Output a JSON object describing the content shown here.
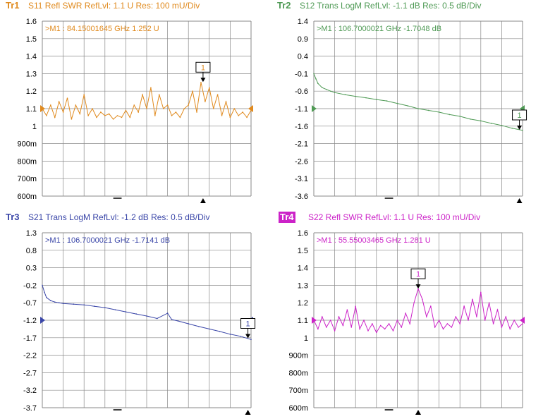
{
  "chart_data": [
    {
      "type": "line",
      "trace_tag": "Tr1",
      "trace_tag_style": "plain",
      "title": "S11 Refl SWR RefLvl: 1.1  U Res: 100 mU/Div",
      "color": "#e08a1e",
      "ylim": [
        0.6,
        1.6
      ],
      "y_ticks": [
        "1.6",
        "1.5",
        "1.4",
        "1.3",
        "1.2",
        "1.1",
        "1",
        "900m",
        "800m",
        "700m",
        "600m"
      ],
      "ref_level": 1.1,
      "grid": true,
      "marker_readout": ">M1  :   84.15001645 GHz  1.252  U",
      "marker": {
        "label": "1",
        "x_frac": 0.77,
        "y": 1.252
      },
      "x": [
        0,
        0.02,
        0.04,
        0.06,
        0.08,
        0.1,
        0.12,
        0.14,
        0.16,
        0.18,
        0.2,
        0.22,
        0.24,
        0.26,
        0.28,
        0.3,
        0.32,
        0.34,
        0.36,
        0.38,
        0.4,
        0.42,
        0.44,
        0.46,
        0.48,
        0.5,
        0.52,
        0.54,
        0.56,
        0.58,
        0.6,
        0.62,
        0.64,
        0.66,
        0.68,
        0.7,
        0.72,
        0.74,
        0.76,
        0.78,
        0.8,
        0.82,
        0.84,
        0.86,
        0.88,
        0.9,
        0.92,
        0.94,
        0.96,
        0.98,
        1.0
      ],
      "values": [
        1.1,
        1.06,
        1.12,
        1.05,
        1.14,
        1.08,
        1.16,
        1.04,
        1.12,
        1.07,
        1.18,
        1.06,
        1.1,
        1.05,
        1.08,
        1.06,
        1.07,
        1.04,
        1.06,
        1.05,
        1.09,
        1.05,
        1.12,
        1.08,
        1.18,
        1.1,
        1.22,
        1.06,
        1.18,
        1.1,
        1.12,
        1.06,
        1.08,
        1.05,
        1.1,
        1.12,
        1.2,
        1.08,
        1.25,
        1.14,
        1.22,
        1.1,
        1.18,
        1.06,
        1.14,
        1.05,
        1.1,
        1.06,
        1.08,
        1.05,
        1.09
      ]
    },
    {
      "type": "line",
      "trace_tag": "Tr2",
      "trace_tag_style": "plain",
      "title": "S12 Trans LogM RefLvl: -1.1  dB Res: 0.5  dB/Div",
      "color": "#4f9a55",
      "ylim": [
        -3.6,
        1.4
      ],
      "y_ticks": [
        "1.4",
        "0.9",
        "0.4",
        "-0.1",
        "-0.6",
        "-1.1",
        "-1.6",
        "-2.1",
        "-2.6",
        "-3.1",
        "-3.6"
      ],
      "ref_level": -1.1,
      "grid": true,
      "marker_readout": ">M1  :   106.7000021 GHz  -1.7048  dB",
      "marker": {
        "label": "1",
        "x_frac": 0.985,
        "y": -1.7048
      },
      "x": [
        0,
        0.01,
        0.02,
        0.04,
        0.06,
        0.08,
        0.1,
        0.15,
        0.2,
        0.25,
        0.3,
        0.35,
        0.4,
        0.45,
        0.5,
        0.55,
        0.6,
        0.65,
        0.7,
        0.75,
        0.8,
        0.85,
        0.9,
        0.95,
        1.0
      ],
      "values": [
        -0.1,
        -0.25,
        -0.38,
        -0.5,
        -0.55,
        -0.6,
        -0.64,
        -0.7,
        -0.75,
        -0.79,
        -0.84,
        -0.88,
        -0.95,
        -1.02,
        -1.1,
        -1.15,
        -1.2,
        -1.27,
        -1.32,
        -1.4,
        -1.45,
        -1.52,
        -1.58,
        -1.66,
        -1.72
      ]
    },
    {
      "type": "line",
      "trace_tag": "Tr3",
      "trace_tag_style": "plain",
      "title": "S21 Trans LogM RefLvl: -1.2  dB Res: 0.5  dB/Div",
      "color": "#3a46a8",
      "ylim": [
        -3.7,
        1.3
      ],
      "y_ticks": [
        "1.3",
        "0.8",
        "0.3",
        "-0.2",
        "-0.7",
        "-1.2",
        "-1.7",
        "-2.2",
        "-2.7",
        "-3.2",
        "-3.7"
      ],
      "ref_level": -1.2,
      "grid": true,
      "marker_readout": ">M1  :   106.7000021 GHz  -1.7141  dB",
      "marker": {
        "label": "1",
        "x_frac": 0.985,
        "y": -1.7141
      },
      "x": [
        0,
        0.01,
        0.02,
        0.04,
        0.06,
        0.08,
        0.1,
        0.15,
        0.2,
        0.25,
        0.3,
        0.35,
        0.4,
        0.45,
        0.5,
        0.55,
        0.6,
        0.6,
        0.62,
        0.65,
        0.7,
        0.75,
        0.8,
        0.85,
        0.9,
        0.95,
        1.0
      ],
      "values": [
        -0.2,
        -0.4,
        -0.55,
        -0.64,
        -0.68,
        -0.7,
        -0.72,
        -0.74,
        -0.76,
        -0.8,
        -0.84,
        -0.9,
        -0.96,
        -1.02,
        -1.08,
        -1.15,
        -1.0,
        -1.0,
        -1.18,
        -1.22,
        -1.3,
        -1.38,
        -1.45,
        -1.52,
        -1.6,
        -1.66,
        -1.75
      ]
    },
    {
      "type": "line",
      "trace_tag": "Tr4",
      "trace_tag_style": "badge",
      "title": "S22 Refl SWR RefLvl: 1.1  U Res: 100 mU/Div",
      "color": "#cc22c8",
      "ylim": [
        0.6,
        1.6
      ],
      "y_ticks": [
        "1.6",
        "1.5",
        "1.4",
        "1.3",
        "1.2",
        "1.1",
        "1",
        "900m",
        "800m",
        "700m",
        "600m"
      ],
      "ref_level": 1.1,
      "grid": true,
      "marker_readout": ">M1  :   55.55003465 GHz  1.281  U",
      "marker": {
        "label": "1",
        "x_frac": 0.5,
        "y": 1.281
      },
      "x": [
        0,
        0.02,
        0.04,
        0.06,
        0.08,
        0.1,
        0.12,
        0.14,
        0.16,
        0.18,
        0.2,
        0.22,
        0.24,
        0.26,
        0.28,
        0.3,
        0.32,
        0.34,
        0.36,
        0.38,
        0.4,
        0.42,
        0.44,
        0.46,
        0.48,
        0.5,
        0.52,
        0.54,
        0.56,
        0.58,
        0.6,
        0.62,
        0.64,
        0.66,
        0.68,
        0.7,
        0.72,
        0.74,
        0.76,
        0.78,
        0.8,
        0.82,
        0.84,
        0.86,
        0.88,
        0.9,
        0.92,
        0.94,
        0.96,
        0.98,
        1.0
      ],
      "values": [
        1.1,
        1.05,
        1.12,
        1.06,
        1.1,
        1.04,
        1.12,
        1.07,
        1.16,
        1.06,
        1.18,
        1.05,
        1.1,
        1.04,
        1.08,
        1.03,
        1.07,
        1.05,
        1.08,
        1.04,
        1.1,
        1.06,
        1.14,
        1.08,
        1.2,
        1.28,
        1.22,
        1.12,
        1.18,
        1.06,
        1.1,
        1.05,
        1.08,
        1.06,
        1.12,
        1.08,
        1.18,
        1.1,
        1.22,
        1.12,
        1.26,
        1.1,
        1.2,
        1.08,
        1.16,
        1.06,
        1.12,
        1.05,
        1.1,
        1.06,
        1.08
      ]
    }
  ]
}
